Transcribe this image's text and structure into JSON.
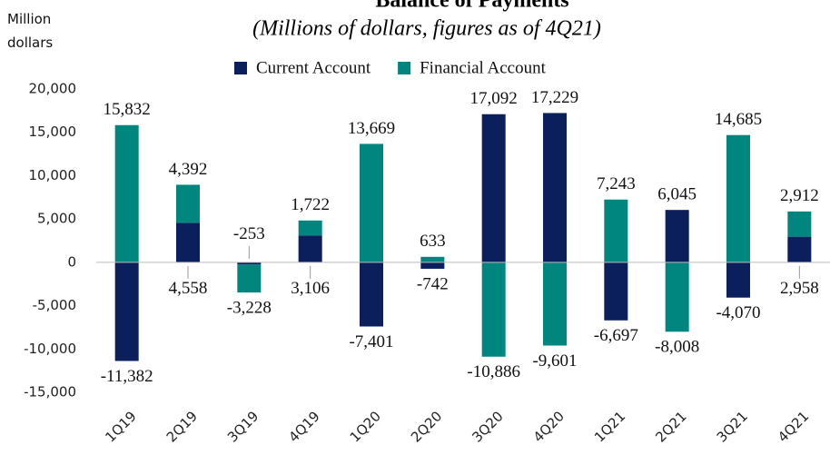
{
  "chart_data": {
    "type": "bar",
    "stacked": true,
    "title": "Balance of Payments",
    "subtitle": "(Millions of dollars, figures as of 4Q21)",
    "y_label": "Million dollars",
    "categories": [
      "1Q19",
      "2Q19",
      "3Q19",
      "4Q19",
      "1Q20",
      "2Q20",
      "3Q20",
      "4Q20",
      "1Q21",
      "2Q21",
      "3Q21",
      "4Q21"
    ],
    "series": [
      {
        "name": "Current Account",
        "color": "#0b1f5c",
        "values": [
          -11382,
          4558,
          -253,
          3106,
          -7401,
          -742,
          17092,
          17229,
          -6697,
          6045,
          -4070,
          2958
        ],
        "value_labels": [
          "-11,382",
          "4,558",
          "-253",
          "3,106",
          "-7,401",
          "-742",
          "17,092",
          "17,229",
          "-6,697",
          "6,045",
          "-4,070",
          "2,958"
        ]
      },
      {
        "name": "Financial Account",
        "color": "#00857f",
        "values": [
          15832,
          4392,
          -3228,
          1722,
          13669,
          633,
          -10886,
          -9601,
          7243,
          -8008,
          14685,
          2912
        ],
        "value_labels": [
          "15,832",
          "4,392",
          "-3,228",
          "1,722",
          "13,669",
          "633",
          "-10,886",
          "-9,601",
          "7,243",
          "-8,008",
          "14,685",
          "2,912"
        ]
      }
    ],
    "ylim": [
      -15000,
      20000
    ],
    "yticks": [
      {
        "value": -15000,
        "label": "-15,000"
      },
      {
        "value": -10000,
        "label": "-10,000"
      },
      {
        "value": -5000,
        "label": "-5,000"
      },
      0,
      {
        "value": 5000,
        "label": "5,000"
      },
      {
        "value": 10000,
        "label": "10,000"
      },
      {
        "value": 15000,
        "label": "15,000"
      },
      {
        "value": 20000,
        "label": "20,000"
      }
    ],
    "grid": false,
    "legend": "top"
  }
}
